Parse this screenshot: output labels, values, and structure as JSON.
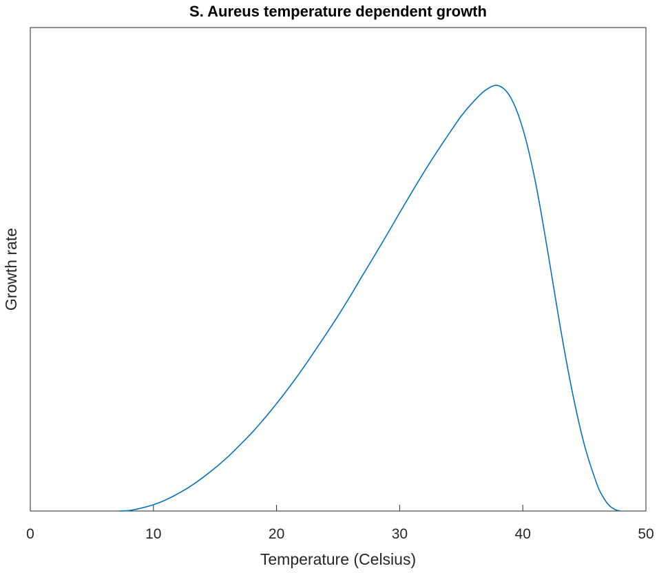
{
  "chart_data": {
    "type": "line",
    "title": "S. Aureus temperature dependent growth",
    "xlabel": "Temperature (Celsius)",
    "ylabel": "Growth rate",
    "xlim": [
      0,
      50
    ],
    "ylim": [
      0,
      1
    ],
    "xticks": [
      "0",
      "10",
      "20",
      "30",
      "40",
      "50"
    ],
    "yticks": [],
    "grid": false,
    "legend": "none",
    "series": [
      {
        "color": "#0072BD",
        "x": [
          7.2,
          8,
          9,
          10,
          11,
          12,
          13,
          14,
          15,
          16,
          17,
          18,
          19,
          20,
          21,
          22,
          23,
          24,
          25,
          26,
          27,
          28,
          29,
          30,
          31,
          32,
          33,
          34,
          35,
          36,
          37,
          38,
          39,
          40,
          41,
          42,
          43,
          44,
          45,
          46,
          46.5,
          47,
          47.5,
          47.9
        ],
        "y": [
          0,
          0.001,
          0.006,
          0.013,
          0.023,
          0.036,
          0.051,
          0.069,
          0.089,
          0.111,
          0.136,
          0.162,
          0.191,
          0.222,
          0.255,
          0.29,
          0.327,
          0.365,
          0.404,
          0.445,
          0.488,
          0.53,
          0.573,
          0.617,
          0.66,
          0.702,
          0.742,
          0.78,
          0.817,
          0.847,
          0.871,
          0.88,
          0.856,
          0.791,
          0.684,
          0.541,
          0.387,
          0.249,
          0.137,
          0.057,
          0.03,
          0.012,
          0.003,
          0
        ]
      }
    ]
  }
}
